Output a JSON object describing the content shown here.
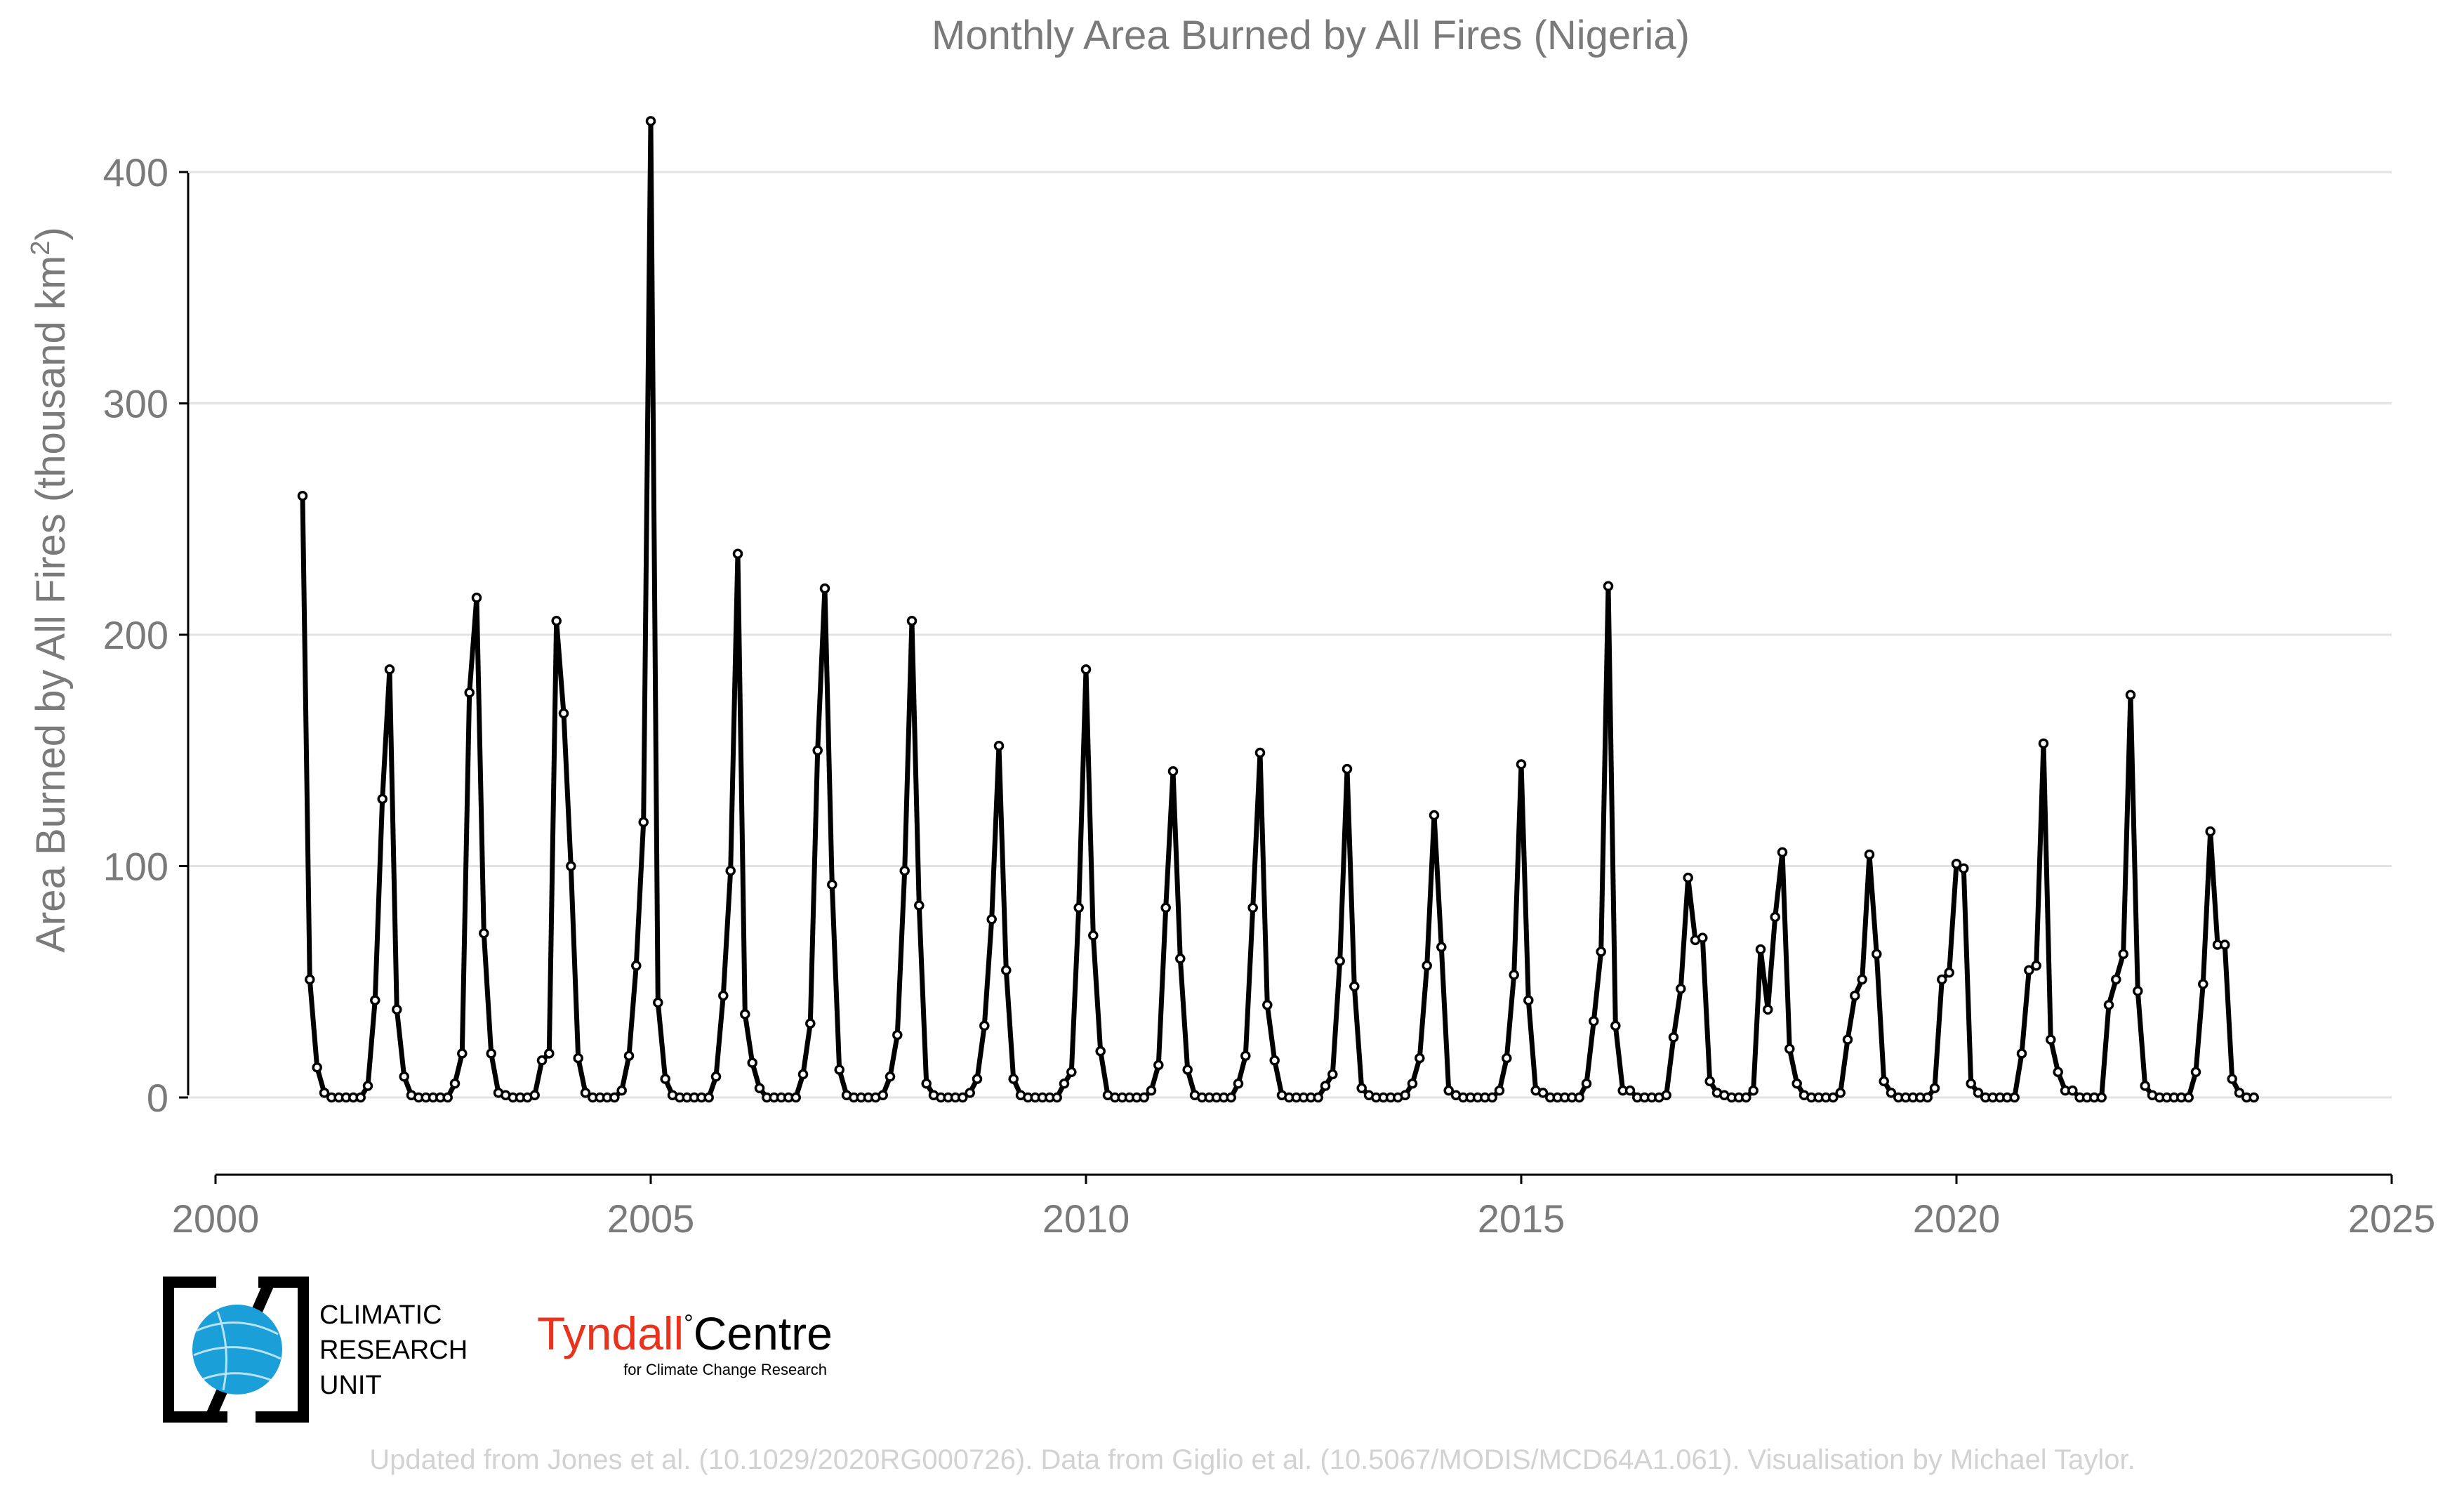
{
  "chart_data": {
    "type": "line",
    "title": "Monthly Area Burned by All Fires (Nigeria)",
    "xlabel": "",
    "ylabel": "Area Burned by All Fires (thousand km",
    "ylabel_superscript": "2",
    "ylabel_close": ")",
    "xlim": [
      2000,
      2025
    ],
    "ylim": [
      -33,
      430
    ],
    "x_ticks": [
      "2000",
      "2005",
      "2010",
      "2015",
      "2020",
      "2025"
    ],
    "y_ticks": [
      "0",
      "100",
      "200",
      "300",
      "400"
    ],
    "grid": "horizontal",
    "series": [
      {
        "start_year": 2001,
        "start_month": 1,
        "values": [
          260,
          51,
          13,
          2,
          0,
          0,
          0,
          0,
          0,
          5,
          42,
          129,
          185,
          38,
          9,
          1,
          0,
          0,
          0,
          0,
          0,
          6,
          19,
          175,
          216,
          71,
          19,
          2,
          1,
          0,
          0,
          0,
          1,
          16,
          19,
          206,
          166,
          100,
          17,
          2,
          0,
          0,
          0,
          0,
          3,
          18,
          57,
          119,
          422,
          41,
          8,
          1,
          0,
          0,
          0,
          0,
          0,
          9,
          44,
          98,
          235,
          36,
          15,
          4,
          0,
          0,
          0,
          0,
          0,
          10,
          32,
          150,
          220,
          92,
          12,
          1,
          0,
          0,
          0,
          0,
          1,
          9,
          27,
          98,
          206,
          83,
          6,
          1,
          0,
          0,
          0,
          0,
          2,
          8,
          31,
          77,
          152,
          55,
          8,
          1,
          0,
          0,
          0,
          0,
          0,
          6,
          11,
          82,
          185,
          70,
          20,
          1,
          0,
          0,
          0,
          0,
          0,
          3,
          14,
          82,
          141,
          60,
          12,
          1,
          0,
          0,
          0,
          0,
          0,
          6,
          18,
          82,
          149,
          40,
          16,
          1,
          0,
          0,
          0,
          0,
          0,
          5,
          10,
          59,
          142,
          48,
          4,
          1,
          0,
          0,
          0,
          0,
          1,
          6,
          17,
          57,
          122,
          65,
          3,
          1,
          0,
          0,
          0,
          0,
          0,
          3,
          17,
          53,
          144,
          42,
          3,
          2,
          0,
          0,
          0,
          0,
          0,
          6,
          33,
          63,
          221,
          31,
          3,
          3,
          0,
          0,
          0,
          0,
          1,
          26,
          47,
          95,
          68,
          69,
          7,
          2,
          1,
          0,
          0,
          0,
          3,
          64,
          38,
          78,
          106,
          21,
          6,
          1,
          0,
          0,
          0,
          0,
          2,
          25,
          44,
          51,
          105,
          62,
          7,
          2,
          0,
          0,
          0,
          0,
          0,
          4,
          51,
          54,
          101,
          99,
          6,
          2,
          0,
          0,
          0,
          0,
          0,
          19,
          55,
          57,
          153,
          25,
          11,
          3,
          3,
          0,
          0,
          0,
          0,
          40,
          51,
          62,
          174,
          46,
          5,
          1,
          0,
          0,
          0,
          0,
          0,
          11,
          49,
          115,
          66,
          66,
          8,
          2,
          0,
          0
        ]
      }
    ]
  },
  "logos": {
    "cru_lines": [
      "CLIMATIC",
      "RESEARCH",
      "UNIT"
    ],
    "tyndall_name": "Tyndall",
    "tyndall_degree": "°",
    "tyndall_centre": "Centre",
    "tyndall_sub": "for Climate Change Research"
  },
  "footer": "Updated from Jones et al. (10.1029/2020RG000726). Data from Giglio et al. (10.5067/MODIS/MCD64A1.061). Visualisation by Michael Taylor.",
  "colors": {
    "line": "#000000",
    "text": "#7a7a7a",
    "footer": "#d2d2d2",
    "cru_blue": "#1a9fd8",
    "tyndall_red": "#e8341c"
  }
}
